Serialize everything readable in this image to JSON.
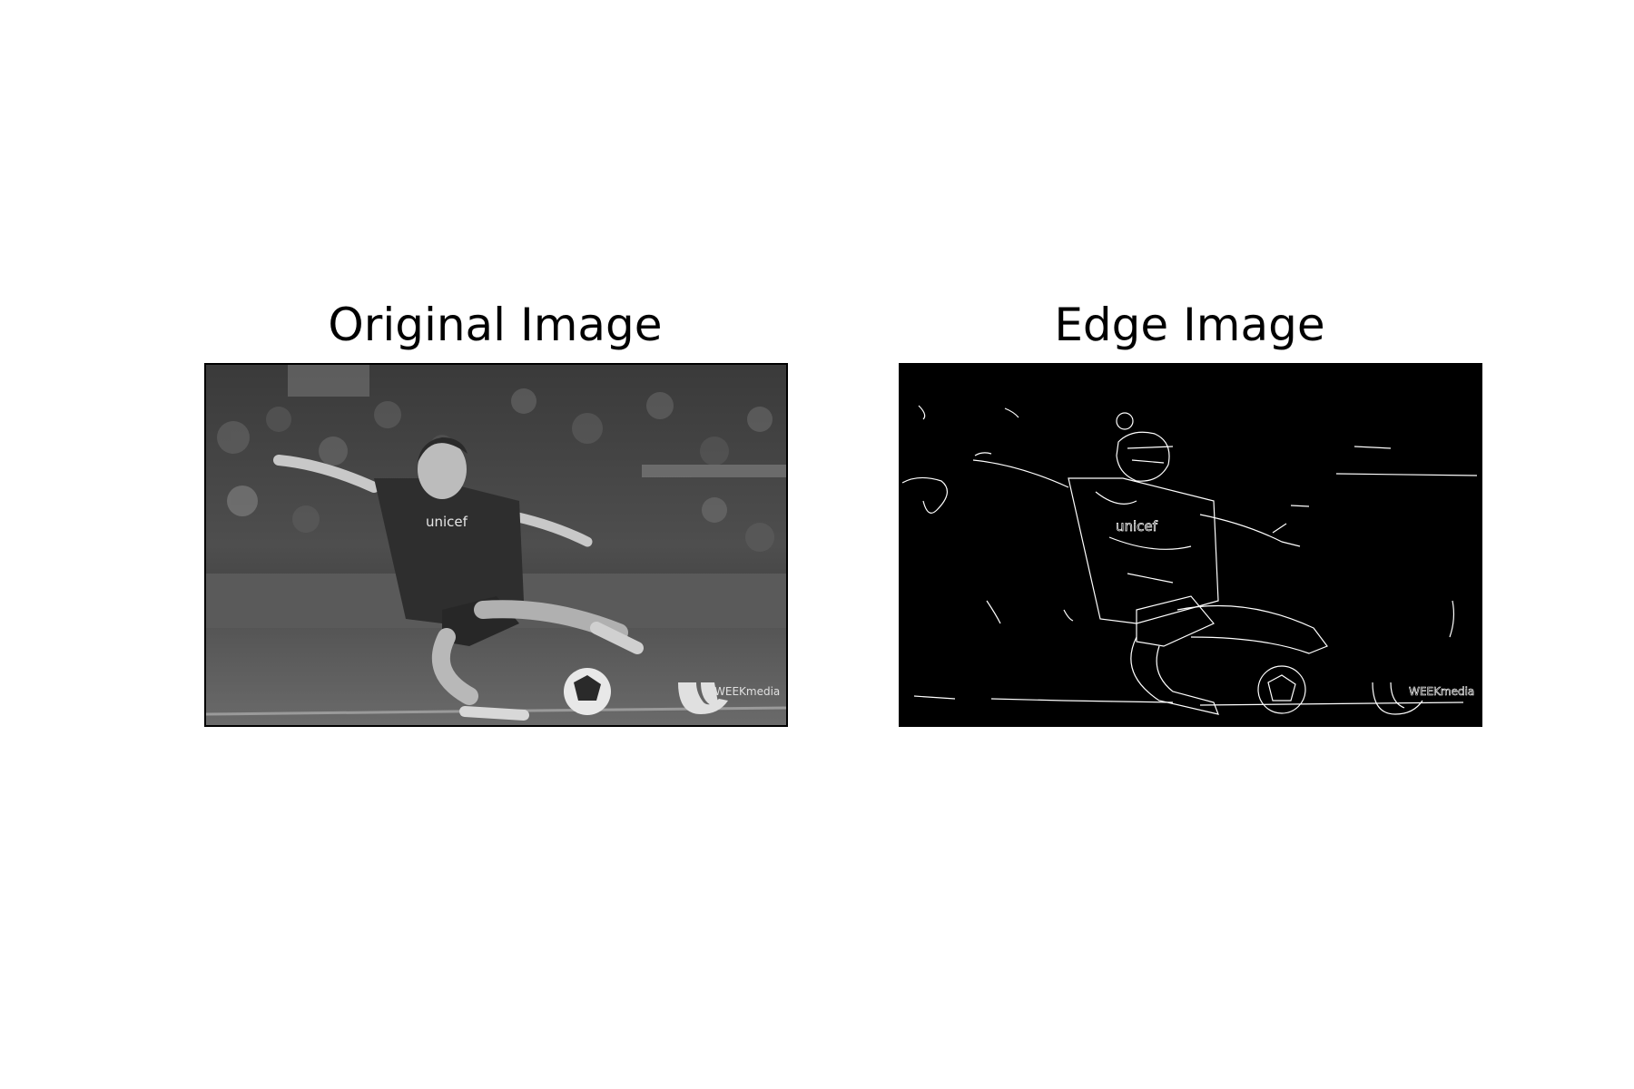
{
  "panels": [
    {
      "title": "Original Image",
      "jersey_text": "unicef",
      "watermark_text": "WEEKmedia"
    },
    {
      "title": "Edge Image",
      "jersey_text": "unicef",
      "watermark_text": "WEEKmedia"
    }
  ],
  "colors": {
    "background": "#ffffff",
    "edge_background": "#000000",
    "edge_line": "#ffffff"
  },
  "icons": {
    "watermark_logo": "weekmedia-logo"
  }
}
